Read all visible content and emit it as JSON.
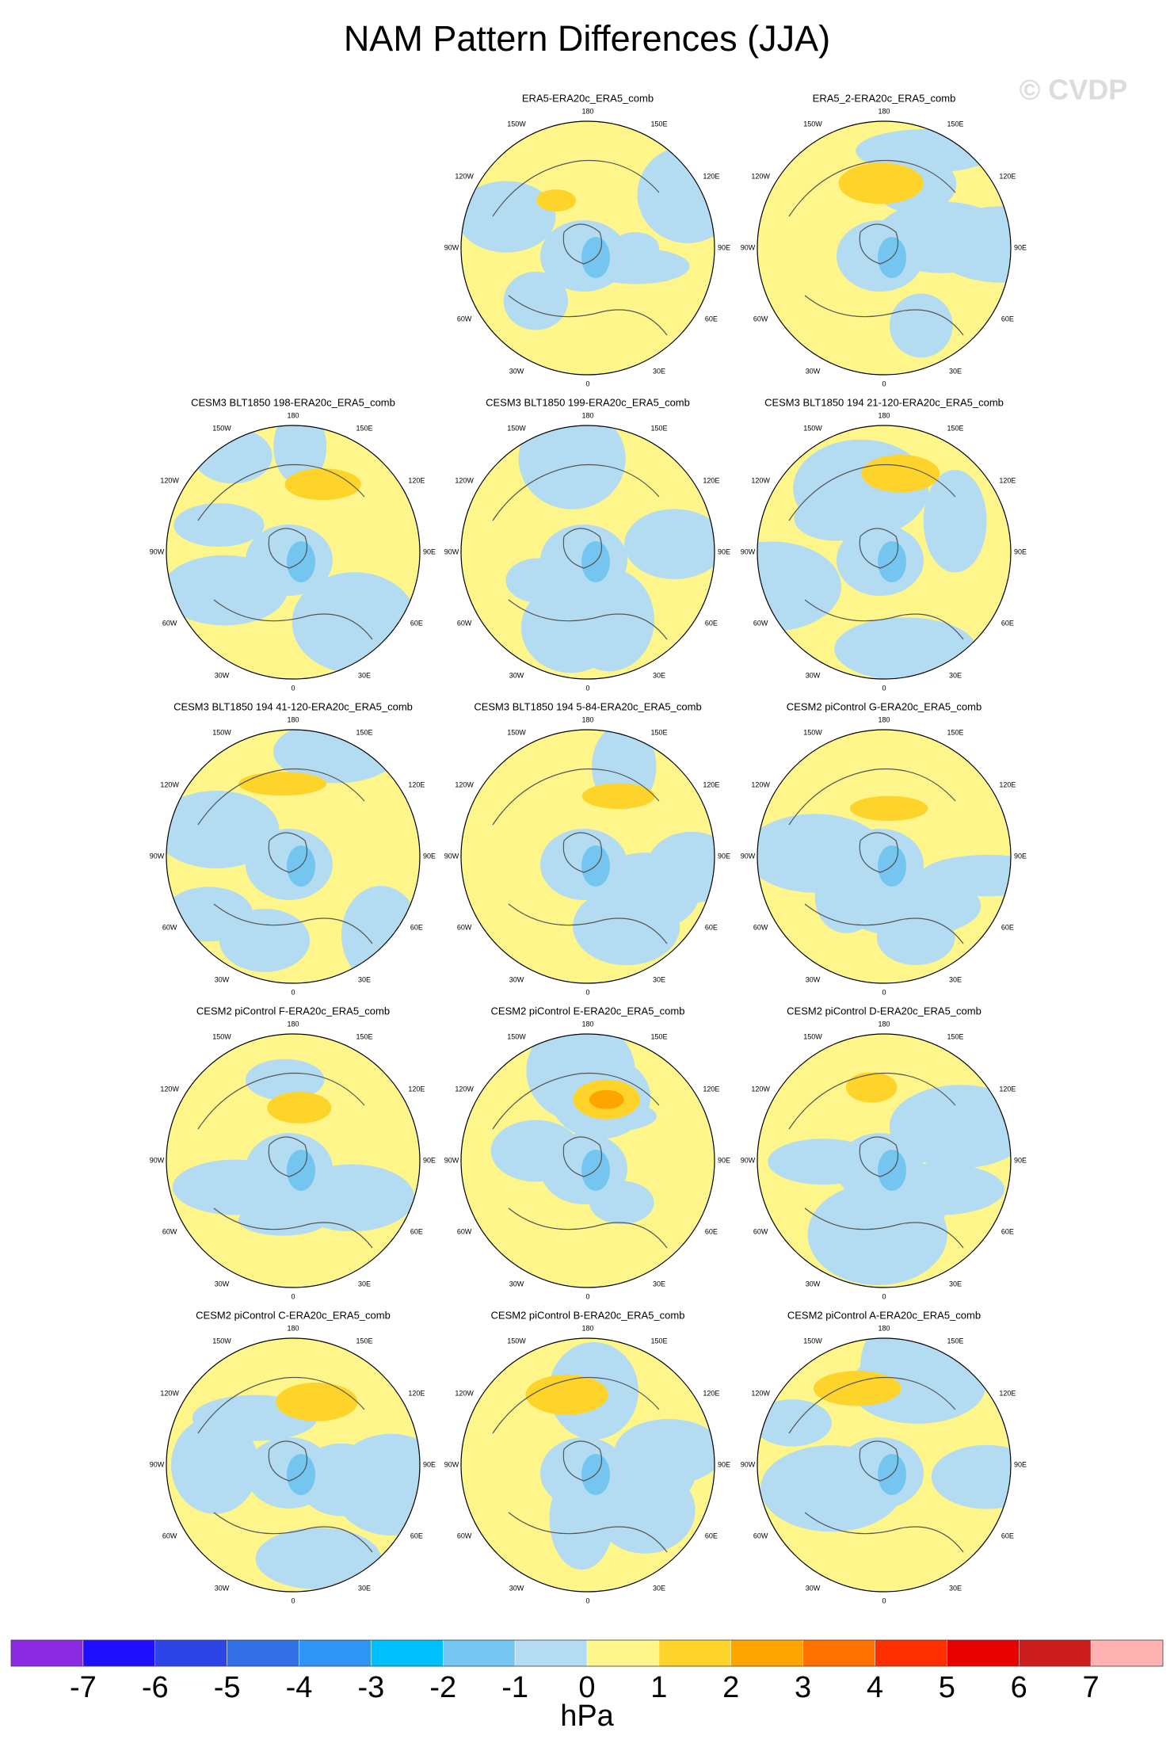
{
  "title": "NAM Pattern Differences (JJA)",
  "watermark": "© CVDP",
  "longitude_labels": [
    "180",
    "150E",
    "120E",
    "90E",
    "60E",
    "30E",
    "0",
    "30W",
    "60W",
    "90W",
    "120W",
    "150W"
  ],
  "panels": [
    {
      "title": "ERA5-ERA20c_ERA5_comb"
    },
    {
      "title": "ERA5_2-ERA20c_ERA5_comb"
    },
    {
      "title": "CESM3 BLT1850 198-ERA20c_ERA5_comb"
    },
    {
      "title": "CESM3 BLT1850 199-ERA20c_ERA5_comb"
    },
    {
      "title": "CESM3 BLT1850 194 21-120-ERA20c_ERA5_comb"
    },
    {
      "title": "CESM3 BLT1850 194 41-120-ERA20c_ERA5_comb"
    },
    {
      "title": "CESM3 BLT1850 194 5-84-ERA20c_ERA5_comb"
    },
    {
      "title": "CESM2 piControl G-ERA20c_ERA5_comb"
    },
    {
      "title": "CESM2 piControl F-ERA20c_ERA5_comb"
    },
    {
      "title": "CESM2 piControl E-ERA20c_ERA5_comb"
    },
    {
      "title": "CESM2 piControl D-ERA20c_ERA5_comb"
    },
    {
      "title": "CESM2 piControl C-ERA20c_ERA5_comb"
    },
    {
      "title": "CESM2 piControl B-ERA20c_ERA5_comb"
    },
    {
      "title": "CESM2 piControl A-ERA20c_ERA5_comb"
    }
  ],
  "colorbar": {
    "colors": [
      "#8a2be2",
      "#1e0fff",
      "#2d45e6",
      "#3370e6",
      "#2e95f5",
      "#00bfff",
      "#74c6f0",
      "#b3dcf2",
      "#fef68a",
      "#ffd42a",
      "#ffa500",
      "#ff7200",
      "#ff3000",
      "#e60000",
      "#cc1c1c",
      "#ffb3b3"
    ],
    "ticks": [
      -7,
      -6,
      -5,
      -4,
      -3,
      -2,
      -1,
      0,
      1,
      2,
      3,
      4,
      5,
      6,
      7
    ],
    "label": "hPa"
  }
}
